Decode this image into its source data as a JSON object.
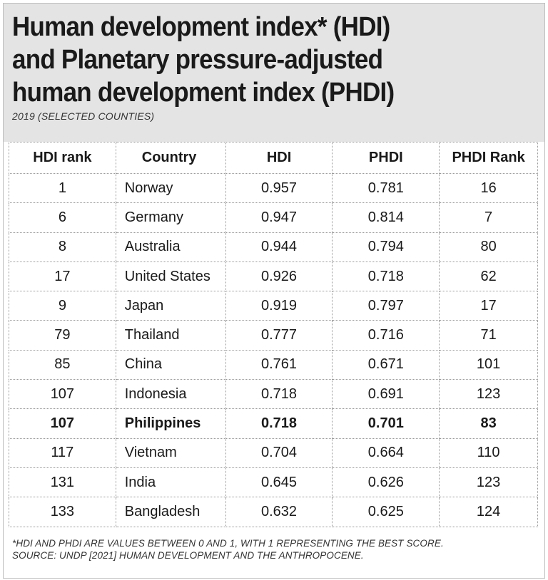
{
  "chart_data": {
    "type": "table",
    "title_lines": [
      "Human development index* (HDI)",
      "and Planetary pressure-adjusted",
      "human development index (PHDI)"
    ],
    "subtitle": "2019 (SELECTED COUNTIES)",
    "columns": [
      "HDI rank",
      "Country",
      "HDI",
      "PHDI",
      "PHDI Rank"
    ],
    "rows": [
      {
        "hdi_rank": "1",
        "country": "Norway",
        "hdi": "0.957",
        "phdi": "0.781",
        "phdi_rank": "16",
        "highlight": false
      },
      {
        "hdi_rank": "6",
        "country": "Germany",
        "hdi": "0.947",
        "phdi": "0.814",
        "phdi_rank": "7",
        "highlight": false
      },
      {
        "hdi_rank": "8",
        "country": "Australia",
        "hdi": "0.944",
        "phdi": "0.794",
        "phdi_rank": "80",
        "highlight": false
      },
      {
        "hdi_rank": "17",
        "country": "United States",
        "hdi": "0.926",
        "phdi": "0.718",
        "phdi_rank": "62",
        "highlight": false
      },
      {
        "hdi_rank": "9",
        "country": "Japan",
        "hdi": "0.919",
        "phdi": "0.797",
        "phdi_rank": "17",
        "highlight": false
      },
      {
        "hdi_rank": "79",
        "country": "Thailand",
        "hdi": "0.777",
        "phdi": "0.716",
        "phdi_rank": "71",
        "highlight": false
      },
      {
        "hdi_rank": "85",
        "country": "China",
        "hdi": "0.761",
        "phdi": "0.671",
        "phdi_rank": "101",
        "highlight": false
      },
      {
        "hdi_rank": "107",
        "country": "Indonesia",
        "hdi": "0.718",
        "phdi": "0.691",
        "phdi_rank": "123",
        "highlight": false
      },
      {
        "hdi_rank": "107",
        "country": "Philippines",
        "hdi": "0.718",
        "phdi": "0.701",
        "phdi_rank": "83",
        "highlight": true
      },
      {
        "hdi_rank": "117",
        "country": "Vietnam",
        "hdi": "0.704",
        "phdi": "0.664",
        "phdi_rank": "110",
        "highlight": false
      },
      {
        "hdi_rank": "131",
        "country": "India",
        "hdi": "0.645",
        "phdi": "0.626",
        "phdi_rank": "123",
        "highlight": false
      },
      {
        "hdi_rank": "133",
        "country": "Bangladesh",
        "hdi": "0.632",
        "phdi": "0.625",
        "phdi_rank": "124",
        "highlight": false
      }
    ],
    "footnotes": [
      "*HDI AND PHDI ARE VALUES BETWEEN 0 AND 1, WITH 1 REPRESENTING THE BEST SCORE.",
      "SOURCE: UNDP [2021] HUMAN DEVELOPMENT AND THE ANTHROPOCENE."
    ]
  },
  "colors": {
    "header_background": "#e4e4e4",
    "text": "#1a1a1a",
    "grid": "#9a9a9a"
  }
}
